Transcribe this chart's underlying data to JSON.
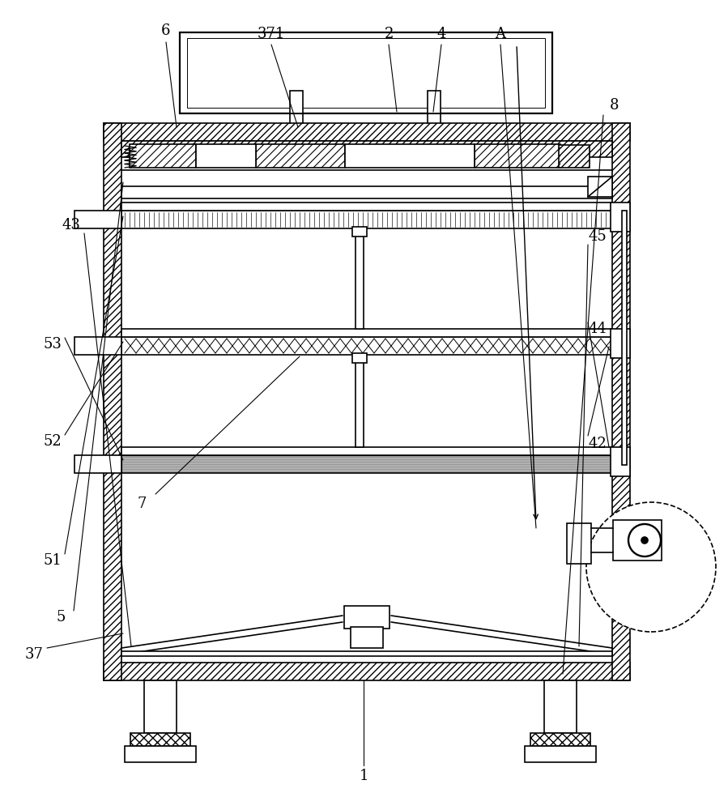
{
  "bg_color": "#ffffff",
  "line_color": "#000000",
  "lw": 1.2,
  "tlw": 2.0,
  "label_fs": 13,
  "fig_w": 8.99,
  "fig_h": 10.0,
  "dpi": 100,
  "labels": [
    [
      "1",
      449,
      42
    ],
    [
      "2",
      480,
      958
    ],
    [
      "4",
      545,
      958
    ],
    [
      "6",
      205,
      962
    ],
    [
      "7",
      175,
      378
    ],
    [
      "8",
      758,
      870
    ],
    [
      "37",
      42,
      192
    ],
    [
      "371",
      335,
      958
    ],
    [
      "42",
      738,
      452
    ],
    [
      "43",
      88,
      722
    ],
    [
      "44",
      738,
      594
    ],
    [
      "45",
      738,
      708
    ],
    [
      "51",
      65,
      308
    ],
    [
      "52",
      65,
      455
    ],
    [
      "53",
      65,
      575
    ],
    [
      "5",
      75,
      238
    ],
    [
      "A",
      618,
      958
    ]
  ],
  "leaders": [
    [
      "1",
      449,
      55,
      449,
      160
    ],
    [
      "2",
      480,
      945,
      490,
      862
    ],
    [
      "4",
      545,
      945,
      535,
      862
    ],
    [
      "6",
      205,
      948,
      218,
      843
    ],
    [
      "7",
      192,
      390,
      370,
      560
    ],
    [
      "8",
      745,
      858,
      695,
      168
    ],
    [
      "37",
      58,
      200,
      152,
      218
    ],
    [
      "371",
      335,
      945,
      368,
      843
    ],
    [
      "42",
      726,
      462,
      752,
      572
    ],
    [
      "43",
      104,
      712,
      162,
      202
    ],
    [
      "44",
      726,
      602,
      752,
      448
    ],
    [
      "45",
      726,
      698,
      715,
      202
    ],
    [
      "51",
      80,
      316,
      152,
      733
    ],
    [
      "52",
      80,
      463,
      152,
      578
    ],
    [
      "53",
      80,
      583,
      152,
      432
    ],
    [
      "5",
      91,
      246,
      152,
      775
    ],
    [
      "A",
      618,
      945,
      662,
      348
    ]
  ]
}
